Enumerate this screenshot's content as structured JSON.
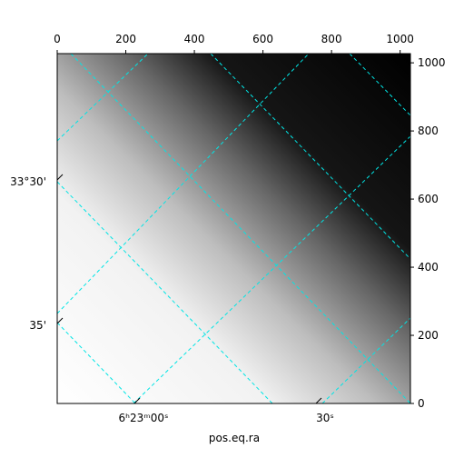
{
  "chart_data": {
    "type": "image",
    "xlabel": "pos.eq.ra",
    "xlim": [
      0,
      1030
    ],
    "xticks": [
      0,
      200,
      400,
      600,
      800,
      1000
    ],
    "ylim": [
      0,
      1027
    ],
    "yticks": [
      0,
      200,
      400,
      600,
      800,
      1000
    ],
    "world_xtick_labels": [
      "6ʰ23ᵐ00ˢ",
      "30ˢ"
    ],
    "world_ytick_labels": [
      "33°30'",
      "35'"
    ],
    "grid_color": "#00e5e5"
  }
}
